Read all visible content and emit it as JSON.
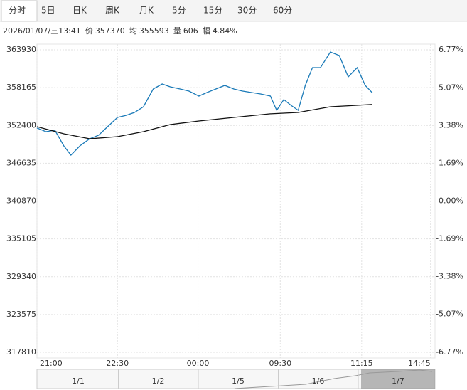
{
  "tabs": [
    "分时",
    "5日",
    "日K",
    "周K",
    "月K",
    "5分",
    "15分",
    "30分",
    "60分"
  ],
  "selected_tab": 0,
  "info": {
    "datetime": "2026/01/07/三13:41",
    "items": [
      {
        "label": "价",
        "value": 357370
      },
      {
        "label": "均",
        "value": 355593
      },
      {
        "label": "量",
        "value": 606
      },
      {
        "label": "幅",
        "value": "4.84%"
      }
    ]
  },
  "chart_data": {
    "type": "line",
    "xlim": [
      0,
      445
    ],
    "xticks": [
      {
        "value": 0,
        "label": "21:00"
      },
      {
        "value": 90,
        "label": "22:30"
      },
      {
        "value": 180,
        "label": "00:00"
      },
      {
        "value": 272,
        "label": "09:30"
      },
      {
        "value": 363,
        "label": "11:15"
      },
      {
        "value": 440,
        "label": "14:45"
      }
    ],
    "ylim": [
      317810,
      363930
    ],
    "yticks": [
      363930,
      358165,
      352400,
      346635,
      340870,
      335105,
      329340,
      323575,
      317810
    ],
    "y2lim": [
      -6.77,
      6.77
    ],
    "y2ticks": [
      {
        "value": 6.77,
        "label": "6.77%"
      },
      {
        "value": 5.07,
        "label": "5.07%"
      },
      {
        "value": 3.38,
        "label": "3.38%"
      },
      {
        "value": 1.69,
        "label": "1.69%"
      },
      {
        "value": 0,
        "label": "0.00%"
      },
      {
        "value": -1.69,
        "label": "-1.69%"
      },
      {
        "value": -3.38,
        "label": "-3.38%"
      },
      {
        "value": -5.07,
        "label": "-5.07%"
      },
      {
        "value": -6.77,
        "label": "-6.77%"
      }
    ],
    "up_color": "#e00000",
    "down_color": "#009900",
    "flat_color": "#222222",
    "grid": true,
    "series": [
      {
        "color": "#1a7ab8",
        "x": [
          0,
          10,
          20,
          30,
          38,
          48,
          59,
          69,
          79,
          90,
          100,
          109,
          119,
          130,
          140,
          149,
          160,
          170,
          181,
          190,
          200,
          210,
          220,
          230,
          240,
          250,
          261,
          268,
          276,
          284,
          292,
          300,
          308,
          317,
          328,
          338,
          348,
          358,
          367,
          375
        ],
        "values": [
          352000,
          351450,
          351670,
          349280,
          347870,
          349280,
          350370,
          350910,
          352210,
          353620,
          353950,
          354380,
          355250,
          357960,
          358720,
          358290,
          357960,
          357640,
          356880,
          357420,
          357960,
          358500,
          357960,
          357640,
          357420,
          357200,
          356880,
          354710,
          356340,
          355470,
          354710,
          358500,
          361220,
          361220,
          363600,
          363060,
          359810,
          361220,
          358500,
          357370
        ]
      },
      {
        "color": "#111111",
        "x": [
          0,
          30,
          59,
          90,
          119,
          149,
          181,
          220,
          261,
          292,
          328,
          375
        ],
        "values": [
          352210,
          351130,
          350370,
          350690,
          351450,
          352540,
          353080,
          353620,
          354170,
          354380,
          355250,
          355593
        ]
      }
    ]
  },
  "navigator": {
    "labels": [
      "1/1",
      "1/2",
      "1/5",
      "1/6",
      "1/7"
    ]
  }
}
